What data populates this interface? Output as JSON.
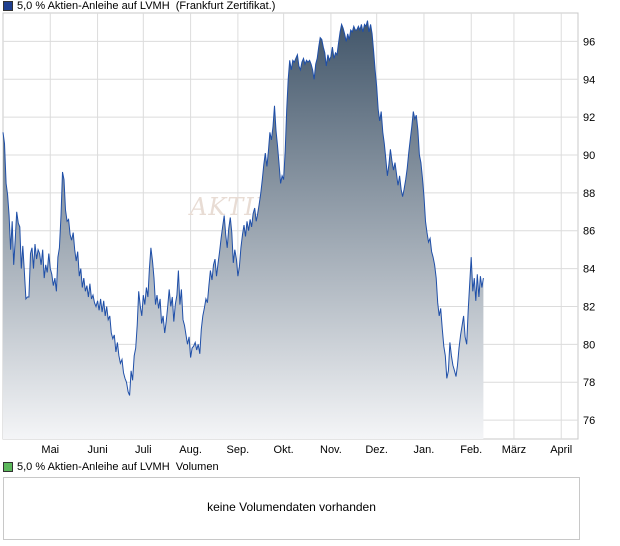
{
  "legend": {
    "price_label": "5,0 % Aktien-Anleihe auf LVMH  (Frankfurt Zertifikat.)",
    "price_color": "#1f3f8f",
    "volume_label": "5,0 % Aktien-Anleihe auf LVMH  Volumen",
    "volume_color": "#5cb85c"
  },
  "watermark": "AKTIE",
  "volume": {
    "message": "keine Volumendaten vorhanden"
  },
  "colors": {
    "line": "#1f4fa8",
    "fill_top": "#42566a",
    "fill_bottom": "#f4f5f7",
    "grid": "#dcdcdc"
  },
  "chart_data": {
    "type": "area",
    "ylim": [
      75,
      97.5
    ],
    "y_ticks": [
      76,
      78,
      80,
      82,
      84,
      86,
      88,
      90,
      92,
      94,
      96
    ],
    "x_ticks": [
      {
        "label": "Mai",
        "x": 31
      },
      {
        "label": "Juni",
        "x": 62
      },
      {
        "label": "Juli",
        "x": 92
      },
      {
        "label": "Aug.",
        "x": 123
      },
      {
        "label": "Sep.",
        "x": 154
      },
      {
        "label": "Okt.",
        "x": 184
      },
      {
        "label": "Nov.",
        "x": 215
      },
      {
        "label": "Dez.",
        "x": 245
      },
      {
        "label": "Jan.",
        "x": 276
      },
      {
        "label": "Feb.",
        "x": 307
      },
      {
        "label": "März",
        "x": 335
      },
      {
        "label": "April",
        "x": 366
      }
    ],
    "x_range": [
      0,
      377
    ],
    "points": [
      [
        0,
        91.2
      ],
      [
        1,
        90.6
      ],
      [
        2,
        88.5
      ],
      [
        3,
        87.9
      ],
      [
        4,
        86.8
      ],
      [
        5,
        85.0
      ],
      [
        6,
        86.5
      ],
      [
        7,
        84.2
      ],
      [
        8,
        85.5
      ],
      [
        9,
        87.0
      ],
      [
        10,
        86.4
      ],
      [
        11,
        86.2
      ],
      [
        12,
        84.0
      ],
      [
        13,
        85.2
      ],
      [
        14,
        83.8
      ],
      [
        15,
        82.4
      ],
      [
        16,
        82.5
      ],
      [
        17,
        82.5
      ],
      [
        18,
        84.8
      ],
      [
        19,
        85.1
      ],
      [
        20,
        84.0
      ],
      [
        21,
        85.3
      ],
      [
        22,
        84.5
      ],
      [
        23,
        85.0
      ],
      [
        24,
        84.8
      ],
      [
        25,
        84.2
      ],
      [
        26,
        85.0
      ],
      [
        27,
        83.5
      ],
      [
        28,
        84.2
      ],
      [
        29,
        83.8
      ],
      [
        30,
        84.8
      ],
      [
        31,
        84.0
      ],
      [
        32,
        83.7
      ],
      [
        33,
        83.1
      ],
      [
        34,
        83.5
      ],
      [
        35,
        82.8
      ],
      [
        36,
        84.6
      ],
      [
        37,
        85.1
      ],
      [
        38,
        86.8
      ],
      [
        39,
        89.1
      ],
      [
        40,
        88.7
      ],
      [
        41,
        87.1
      ],
      [
        42,
        86.5
      ],
      [
        43,
        86.6
      ],
      [
        44,
        85.8
      ],
      [
        45,
        85.5
      ],
      [
        46,
        85.9
      ],
      [
        47,
        85.0
      ],
      [
        48,
        84.4
      ],
      [
        49,
        84.9
      ],
      [
        50,
        83.6
      ],
      [
        51,
        84.0
      ],
      [
        52,
        83.0
      ],
      [
        53,
        83.5
      ],
      [
        54,
        82.8
      ],
      [
        55,
        83.1
      ],
      [
        56,
        82.5
      ],
      [
        57,
        83.2
      ],
      [
        58,
        82.4
      ],
      [
        59,
        82.6
      ],
      [
        60,
        82.2
      ],
      [
        61,
        82.0
      ],
      [
        62,
        82.3
      ],
      [
        63,
        81.8
      ],
      [
        64,
        82.4
      ],
      [
        65,
        81.7
      ],
      [
        66,
        82.3
      ],
      [
        67,
        81.5
      ],
      [
        68,
        82.0
      ],
      [
        69,
        81.3
      ],
      [
        70,
        81.5
      ],
      [
        71,
        80.6
      ],
      [
        72,
        80.3
      ],
      [
        73,
        80.5
      ],
      [
        74,
        79.6
      ],
      [
        75,
        80.1
      ],
      [
        76,
        79.4
      ],
      [
        77,
        79.0
      ],
      [
        78,
        79.2
      ],
      [
        79,
        78.5
      ],
      [
        80,
        78.2
      ],
      [
        81,
        78.0
      ],
      [
        82,
        77.5
      ],
      [
        83,
        77.3
      ],
      [
        84,
        78.6
      ],
      [
        85,
        78.1
      ],
      [
        86,
        79.4
      ],
      [
        87,
        79.8
      ],
      [
        88,
        81.0
      ],
      [
        89,
        82.8
      ],
      [
        90,
        82.0
      ],
      [
        91,
        81.5
      ],
      [
        92,
        82.6
      ],
      [
        93,
        82.1
      ],
      [
        94,
        83.0
      ],
      [
        95,
        82.5
      ],
      [
        96,
        84.0
      ],
      [
        97,
        85.1
      ],
      [
        98,
        84.4
      ],
      [
        99,
        83.5
      ],
      [
        100,
        82.1
      ],
      [
        101,
        82.6
      ],
      [
        102,
        81.9
      ],
      [
        103,
        82.4
      ],
      [
        104,
        81.1
      ],
      [
        105,
        81.5
      ],
      [
        106,
        80.6
      ],
      [
        107,
        81.2
      ],
      [
        108,
        82.0
      ],
      [
        109,
        82.9
      ],
      [
        110,
        82.0
      ],
      [
        111,
        82.5
      ],
      [
        112,
        81.2
      ],
      [
        113,
        82.1
      ],
      [
        114,
        82.6
      ],
      [
        115,
        83.9
      ],
      [
        116,
        82.1
      ],
      [
        117,
        82.9
      ],
      [
        118,
        81.3
      ],
      [
        119,
        81.0
      ],
      [
        120,
        80.5
      ],
      [
        121,
        80.0
      ],
      [
        122,
        80.4
      ],
      [
        123,
        79.3
      ],
      [
        124,
        79.8
      ],
      [
        125,
        79.9
      ],
      [
        126,
        80.1
      ],
      [
        127,
        79.7
      ],
      [
        128,
        80.0
      ],
      [
        129,
        79.5
      ],
      [
        130,
        80.8
      ],
      [
        131,
        81.5
      ],
      [
        132,
        81.9
      ],
      [
        133,
        82.4
      ],
      [
        134,
        82.2
      ],
      [
        135,
        83.1
      ],
      [
        136,
        83.9
      ],
      [
        137,
        83.4
      ],
      [
        138,
        84.2
      ],
      [
        139,
        84.5
      ],
      [
        140,
        83.6
      ],
      [
        141,
        84.3
      ],
      [
        142,
        84.9
      ],
      [
        143,
        85.6
      ],
      [
        144,
        86.2
      ],
      [
        145,
        86.8
      ],
      [
        146,
        85.8
      ],
      [
        147,
        85.1
      ],
      [
        148,
        86.1
      ],
      [
        149,
        86.7
      ],
      [
        150,
        85.9
      ],
      [
        151,
        84.3
      ],
      [
        152,
        85.0
      ],
      [
        153,
        84.5
      ],
      [
        154,
        83.6
      ],
      [
        155,
        84.1
      ],
      [
        156,
        85.1
      ],
      [
        157,
        85.8
      ],
      [
        158,
        86.3
      ],
      [
        159,
        85.7
      ],
      [
        160,
        86.5
      ],
      [
        161,
        86.0
      ],
      [
        162,
        86.6
      ],
      [
        163,
        86.2
      ],
      [
        164,
        86.9
      ],
      [
        165,
        87.2
      ],
      [
        166,
        86.5
      ],
      [
        167,
        86.9
      ],
      [
        168,
        87.4
      ],
      [
        169,
        88.0
      ],
      [
        170,
        88.7
      ],
      [
        171,
        89.5
      ],
      [
        172,
        90.1
      ],
      [
        173,
        89.4
      ],
      [
        174,
        90.2
      ],
      [
        175,
        91.2
      ],
      [
        176,
        90.8
      ],
      [
        177,
        91.5
      ],
      [
        178,
        92.6
      ],
      [
        179,
        91.3
      ],
      [
        180,
        90.5
      ],
      [
        181,
        89.5
      ],
      [
        182,
        88.5
      ],
      [
        183,
        88.9
      ],
      [
        184,
        88.7
      ],
      [
        185,
        90.2
      ],
      [
        186,
        92.4
      ],
      [
        187,
        94.0
      ],
      [
        188,
        95.0
      ],
      [
        189,
        94.5
      ],
      [
        190,
        95.0
      ],
      [
        191,
        94.9
      ],
      [
        192,
        95.1
      ],
      [
        193,
        95.3
      ],
      [
        194,
        94.7
      ],
      [
        195,
        94.5
      ],
      [
        196,
        94.9
      ],
      [
        197,
        95.1
      ],
      [
        198,
        94.8
      ],
      [
        199,
        95.0
      ],
      [
        200,
        94.9
      ],
      [
        201,
        95.0
      ],
      [
        202,
        94.8
      ],
      [
        203,
        94.5
      ],
      [
        204,
        94.0
      ],
      [
        205,
        94.8
      ],
      [
        206,
        95.1
      ],
      [
        207,
        95.7
      ],
      [
        208,
        96.2
      ],
      [
        209,
        96.1
      ],
      [
        210,
        95.7
      ],
      [
        211,
        95.4
      ],
      [
        212,
        94.7
      ],
      [
        213,
        95.3
      ],
      [
        214,
        95.0
      ],
      [
        215,
        95.2
      ],
      [
        216,
        95.7
      ],
      [
        217,
        95.1
      ],
      [
        218,
        95.4
      ],
      [
        219,
        95.3
      ],
      [
        220,
        95.9
      ],
      [
        221,
        96.5
      ],
      [
        222,
        96.9
      ],
      [
        223,
        96.7
      ],
      [
        224,
        96.4
      ],
      [
        225,
        96.0
      ],
      [
        226,
        96.4
      ],
      [
        227,
        96.1
      ],
      [
        228,
        96.6
      ],
      [
        229,
        96.5
      ],
      [
        230,
        96.8
      ],
      [
        231,
        96.6
      ],
      [
        232,
        96.6
      ],
      [
        233,
        96.8
      ],
      [
        234,
        96.6
      ],
      [
        235,
        96.9
      ],
      [
        236,
        96.5
      ],
      [
        237,
        96.9
      ],
      [
        238,
        96.8
      ],
      [
        239,
        97.1
      ],
      [
        240,
        96.5
      ],
      [
        241,
        96.9
      ],
      [
        242,
        96.4
      ],
      [
        243,
        95.5
      ],
      [
        244,
        94.5
      ],
      [
        245,
        93.6
      ],
      [
        246,
        92.4
      ],
      [
        247,
        91.8
      ],
      [
        248,
        92.3
      ],
      [
        249,
        91.2
      ],
      [
        250,
        90.6
      ],
      [
        251,
        89.8
      ],
      [
        252,
        88.9
      ],
      [
        253,
        89.5
      ],
      [
        254,
        90.3
      ],
      [
        255,
        89.7
      ],
      [
        256,
        89.2
      ],
      [
        257,
        89.6
      ],
      [
        258,
        89.0
      ],
      [
        259,
        88.4
      ],
      [
        260,
        88.9
      ],
      [
        261,
        88.2
      ],
      [
        262,
        87.8
      ],
      [
        263,
        88.2
      ],
      [
        264,
        88.7
      ],
      [
        265,
        89.3
      ],
      [
        266,
        90.1
      ],
      [
        267,
        90.8
      ],
      [
        268,
        91.5
      ],
      [
        269,
        92.3
      ],
      [
        270,
        91.9
      ],
      [
        271,
        92.1
      ],
      [
        272,
        91.3
      ],
      [
        273,
        90.0
      ],
      [
        274,
        89.6
      ],
      [
        275,
        88.8
      ],
      [
        276,
        87.8
      ],
      [
        277,
        86.5
      ],
      [
        278,
        85.9
      ],
      [
        279,
        85.4
      ],
      [
        280,
        85.6
      ],
      [
        281,
        84.9
      ],
      [
        282,
        84.6
      ],
      [
        283,
        84.2
      ],
      [
        284,
        83.5
      ],
      [
        285,
        82.2
      ],
      [
        286,
        81.5
      ],
      [
        287,
        81.9
      ],
      [
        288,
        80.8
      ],
      [
        289,
        79.9
      ],
      [
        290,
        79.4
      ],
      [
        291,
        78.2
      ],
      [
        292,
        78.6
      ],
      [
        293,
        80.1
      ],
      [
        294,
        79.4
      ],
      [
        295,
        78.9
      ],
      [
        296,
        78.6
      ],
      [
        297,
        78.3
      ],
      [
        298,
        78.9
      ],
      [
        299,
        79.8
      ],
      [
        300,
        80.5
      ],
      [
        301,
        81.0
      ],
      [
        302,
        81.5
      ],
      [
        303,
        80.4
      ],
      [
        304,
        80.0
      ],
      [
        305,
        81.8
      ],
      [
        306,
        83.2
      ],
      [
        307,
        84.6
      ],
      [
        308,
        82.8
      ],
      [
        309,
        83.5
      ],
      [
        310,
        82.3
      ],
      [
        311,
        83.7
      ],
      [
        312,
        82.5
      ],
      [
        313,
        83.6
      ],
      [
        314,
        83.0
      ],
      [
        315,
        83.5
      ]
    ]
  }
}
